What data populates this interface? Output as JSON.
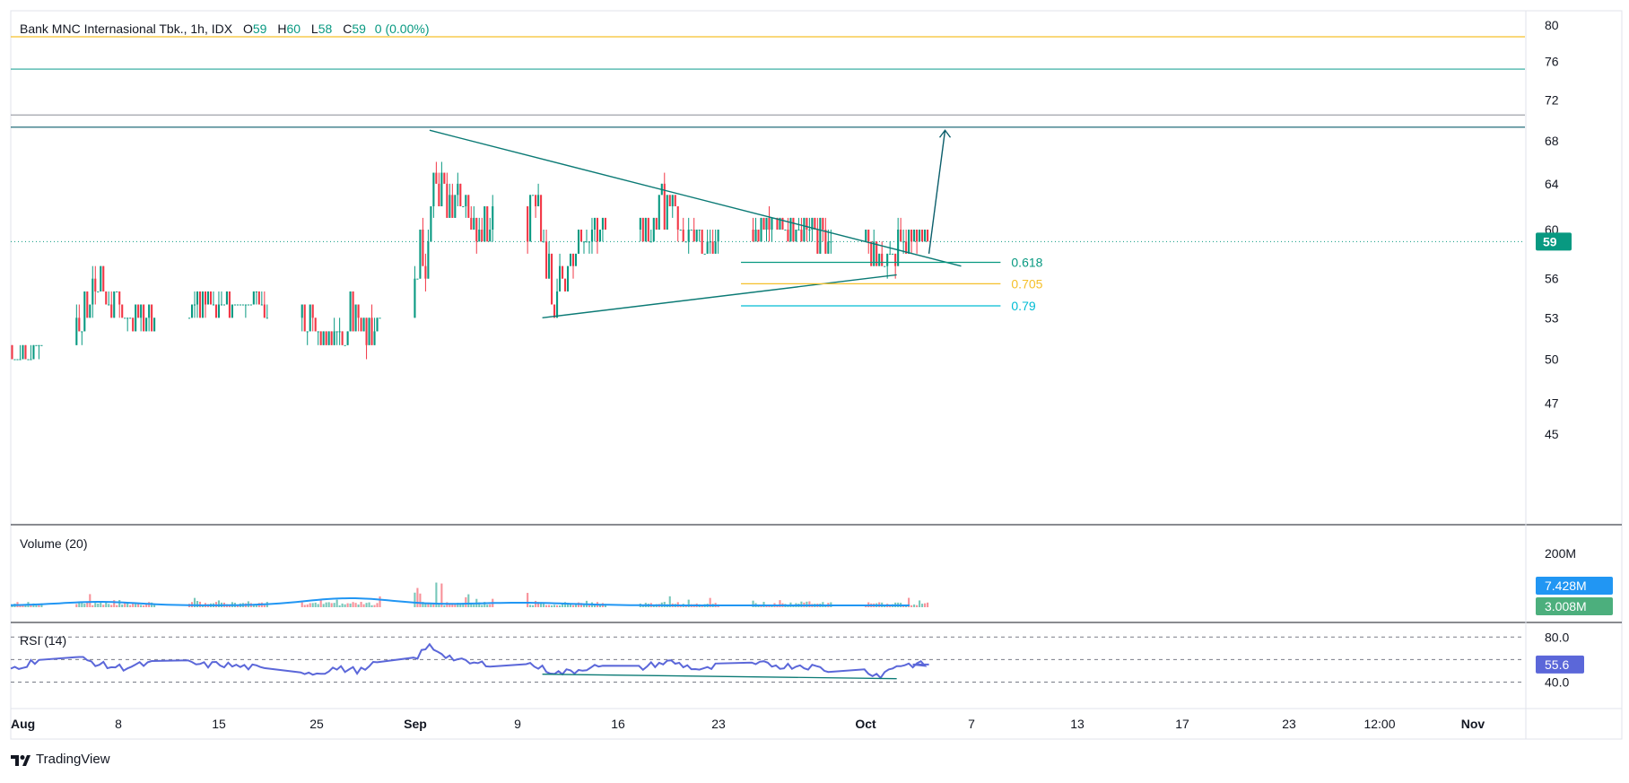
{
  "legend": {
    "symbol": "Bank MNC Internasional Tbk., 1h, IDX",
    "open_label": "O",
    "open": "59",
    "high_label": "H",
    "high": "60",
    "low_label": "L",
    "low": "58",
    "close_label": "C",
    "close": "59",
    "change": "0 (0.00%)"
  },
  "volume_pane": {
    "title": "Volume (20)",
    "axis_label": "200M",
    "ma_value": "7.428M",
    "vol_value": "3.008M"
  },
  "rsi_pane": {
    "title": "RSI (14)",
    "upper": "80.0",
    "lower": "40.0",
    "value": "55.6"
  },
  "price_axis": {
    "ticks": [
      "80",
      "76",
      "72",
      "68",
      "64",
      "60",
      "56",
      "53",
      "50",
      "47",
      "45"
    ],
    "last_price": "59"
  },
  "time_axis": {
    "labels": [
      "Aug",
      "8",
      "15",
      "25",
      "Sep",
      "9",
      "16",
      "23",
      "Oct",
      "7",
      "13",
      "17",
      "23",
      "12:00",
      "Nov"
    ]
  },
  "fib_levels": [
    {
      "label": "0.618",
      "price": 57.3,
      "color": "#089981"
    },
    {
      "label": "0.705",
      "price": 55.6,
      "color": "#f5c02a"
    },
    {
      "label": "0.79",
      "price": 53.9,
      "color": "#00bcd4"
    }
  ],
  "horizontal_levels": [
    {
      "price": 78.7,
      "color": "#f5c02a"
    },
    {
      "price": 75.2,
      "color": "#26a69a"
    },
    {
      "price": 70.5,
      "color": "#9598a1"
    },
    {
      "price": 69.3,
      "color": "#0b5e6b"
    }
  ],
  "colors": {
    "up": "#089981",
    "down": "#f23645",
    "rsi": "#5b67d9",
    "volume_ma": "#2196f3",
    "last_price_bg": "#089981"
  },
  "chart_data": {
    "type": "candlestick",
    "title": "Bank MNC Internasional Tbk., 1h, IDX",
    "y_scale": "log",
    "ylim": [
      44.5,
      81
    ],
    "x_range": [
      "Aug 1",
      "Nov 3"
    ],
    "ohlc_daily": [
      {
        "d": "Aug 1",
        "o": 51,
        "h": 51,
        "l": 50,
        "c": 50
      },
      {
        "d": "Aug 2",
        "o": 50,
        "h": 51,
        "l": 50,
        "c": 51
      },
      {
        "d": "Aug 5",
        "o": 51,
        "h": 55,
        "l": 51,
        "c": 54
      },
      {
        "d": "Aug 6",
        "o": 54,
        "h": 57,
        "l": 53,
        "c": 54
      },
      {
        "d": "Aug 7",
        "o": 54,
        "h": 55,
        "l": 53,
        "c": 53
      },
      {
        "d": "Aug 8",
        "o": 53,
        "h": 54,
        "l": 52,
        "c": 53
      },
      {
        "d": "Aug 9",
        "o": 53,
        "h": 54,
        "l": 52,
        "c": 53
      },
      {
        "d": "Aug 12",
        "o": 53,
        "h": 55,
        "l": 53,
        "c": 55
      },
      {
        "d": "Aug 13",
        "o": 55,
        "h": 55,
        "l": 53,
        "c": 54
      },
      {
        "d": "Aug 14",
        "o": 54,
        "h": 55,
        "l": 53,
        "c": 54
      },
      {
        "d": "Aug 15",
        "o": 54,
        "h": 54,
        "l": 53,
        "c": 54
      },
      {
        "d": "Aug 16",
        "o": 54,
        "h": 55,
        "l": 53,
        "c": 53
      },
      {
        "d": "Aug 19",
        "o": 53,
        "h": 54,
        "l": 51,
        "c": 52
      },
      {
        "d": "Aug 20",
        "o": 52,
        "h": 52,
        "l": 51,
        "c": 51
      },
      {
        "d": "Aug 21",
        "o": 51,
        "h": 53,
        "l": 51,
        "c": 52
      },
      {
        "d": "Aug 22",
        "o": 52,
        "h": 55,
        "l": 52,
        "c": 53
      },
      {
        "d": "Aug 23",
        "o": 53,
        "h": 54,
        "l": 50,
        "c": 53
      },
      {
        "d": "Aug 26",
        "o": 53,
        "h": 61,
        "l": 53,
        "c": 59
      },
      {
        "d": "Aug 27",
        "o": 59,
        "h": 69,
        "l": 59,
        "c": 64
      },
      {
        "d": "Aug 28",
        "o": 64,
        "h": 65,
        "l": 61,
        "c": 62
      },
      {
        "d": "Aug 29",
        "o": 62,
        "h": 63,
        "l": 58,
        "c": 59
      },
      {
        "d": "Aug 30",
        "o": 59,
        "h": 64,
        "l": 59,
        "c": 62
      },
      {
        "d": "Sep 2",
        "o": 62,
        "h": 64,
        "l": 58,
        "c": 59
      },
      {
        "d": "Sep 3",
        "o": 59,
        "h": 60,
        "l": 53,
        "c": 55
      },
      {
        "d": "Sep 4",
        "o": 55,
        "h": 58,
        "l": 55,
        "c": 57
      },
      {
        "d": "Sep 5",
        "o": 57,
        "h": 60,
        "l": 57,
        "c": 59
      },
      {
        "d": "Sep 6",
        "o": 59,
        "h": 61,
        "l": 58,
        "c": 60
      },
      {
        "d": "Sep 9",
        "o": 60,
        "h": 61,
        "l": 59,
        "c": 61
      },
      {
        "d": "Sep 10",
        "o": 61,
        "h": 65,
        "l": 60,
        "c": 62
      },
      {
        "d": "Sep 11",
        "o": 62,
        "h": 63,
        "l": 59,
        "c": 59
      },
      {
        "d": "Sep 12",
        "o": 59,
        "h": 61,
        "l": 57,
        "c": 58
      },
      {
        "d": "Sep 13",
        "o": 58,
        "h": 61,
        "l": 58,
        "c": 60
      },
      {
        "d": "Sep 16",
        "o": 60,
        "h": 61,
        "l": 59,
        "c": 61
      },
      {
        "d": "Sep 17",
        "o": 61,
        "h": 62,
        "l": 59,
        "c": 60
      },
      {
        "d": "Sep 18",
        "o": 60,
        "h": 61,
        "l": 59,
        "c": 60
      },
      {
        "d": "Sep 19",
        "o": 60,
        "h": 61,
        "l": 59,
        "c": 60
      },
      {
        "d": "Sep 20",
        "o": 60,
        "h": 61,
        "l": 58,
        "c": 59
      },
      {
        "d": "Sep 23",
        "o": 59,
        "h": 60,
        "l": 57,
        "c": 58
      },
      {
        "d": "Sep 24",
        "o": 58,
        "h": 59,
        "l": 56,
        "c": 57
      },
      {
        "d": "Sep 25",
        "o": 57,
        "h": 61,
        "l": 57,
        "c": 59
      },
      {
        "d": "Sep 26",
        "o": 59,
        "h": 60,
        "l": 58,
        "c": 59
      }
    ],
    "triangle_upper": [
      {
        "d": "Aug 27",
        "y": 69
      },
      {
        "d": "Sep 29",
        "y": 57
      }
    ],
    "triangle_lower": [
      {
        "d": "Sep 3",
        "y": 53
      },
      {
        "d": "Sep 25",
        "y": 56.3
      }
    ],
    "projection_arrow": [
      {
        "d": "Sep 27",
        "y": 58
      },
      {
        "d": "Sep 28",
        "y": 69
      }
    ],
    "volume_series": {
      "max_label": "200M",
      "last": "3.008M",
      "ma_last": "7.428M"
    },
    "rsi_series": {
      "upper": 80,
      "lower": 40,
      "last": 55.6,
      "values_daily": [
        52,
        56,
        62,
        58,
        54,
        53,
        55,
        57,
        55,
        56,
        54,
        53,
        50,
        48,
        52,
        51,
        50,
        60,
        72,
        64,
        58,
        56,
        57,
        52,
        48,
        50,
        54,
        52,
        56,
        58,
        54,
        50,
        55,
        56,
        54,
        55,
        53,
        50,
        46,
        55,
        55.6
      ]
    }
  }
}
